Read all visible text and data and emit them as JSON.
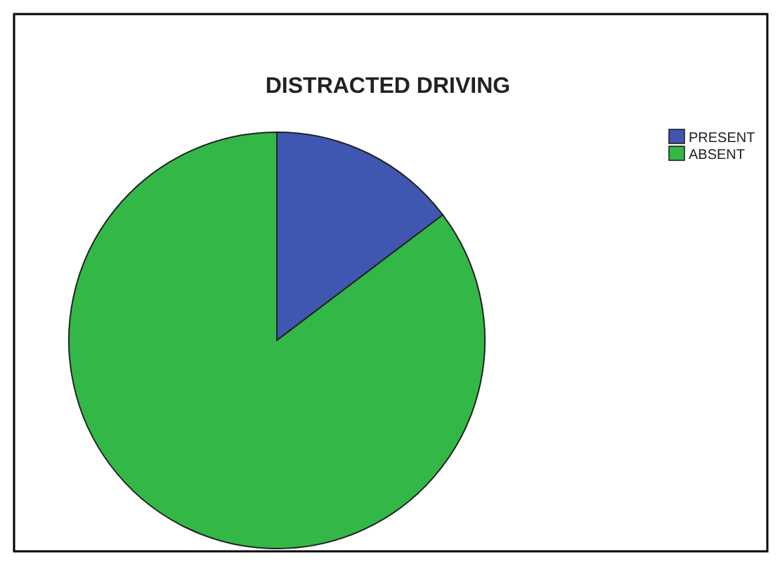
{
  "chart_data": {
    "type": "pie",
    "title": "DISTRACTED DRIVING",
    "categories": [
      "PRESENT",
      "ABSENT"
    ],
    "values": [
      14.7,
      85.3
    ],
    "colors": [
      "#3f57b0",
      "#33b848"
    ],
    "legend": "top right"
  }
}
